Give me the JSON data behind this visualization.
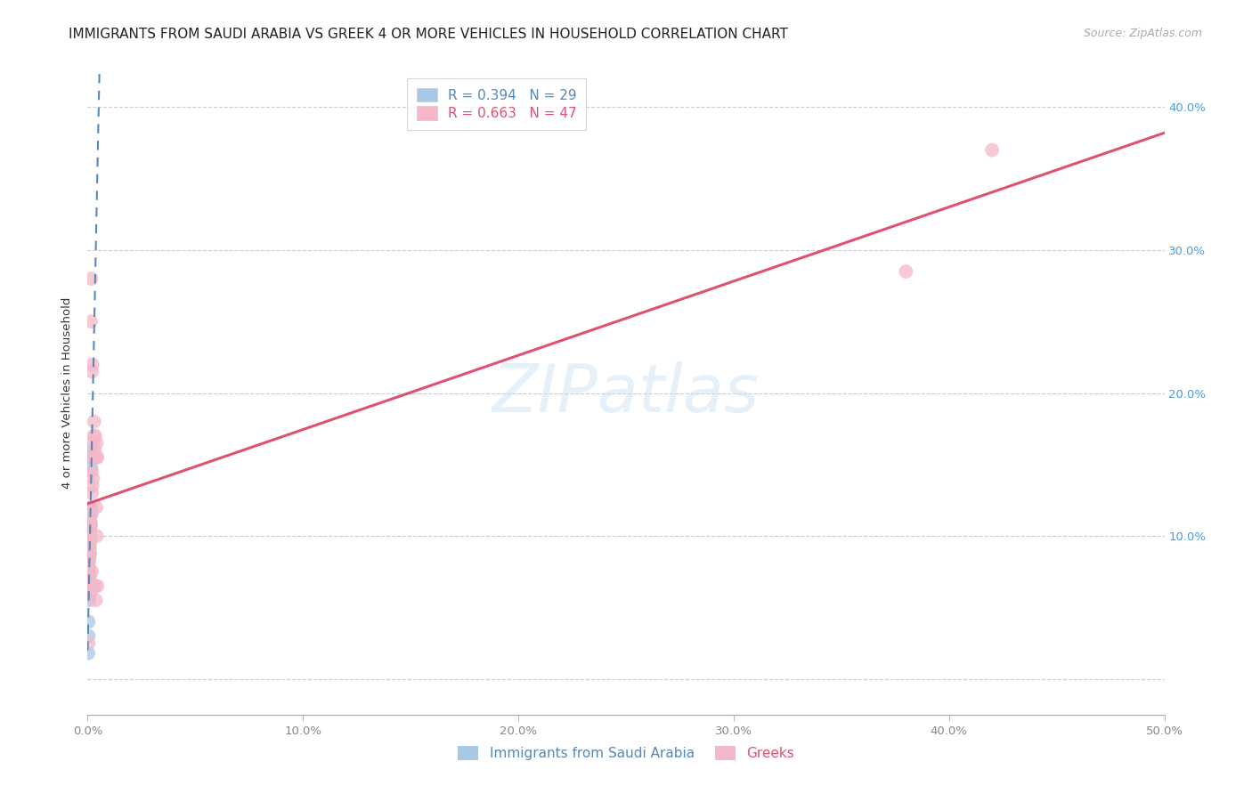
{
  "title": "IMMIGRANTS FROM SAUDI ARABIA VS GREEK 4 OR MORE VEHICLES IN HOUSEHOLD CORRELATION CHART",
  "source": "Source: ZipAtlas.com",
  "ylabel": "4 or more Vehicles in Household",
  "watermark": "ZIPatlas",
  "legend_entries": [
    {
      "label": "R = 0.394   N = 29",
      "color": "#a8c8e8"
    },
    {
      "label": "R = 0.663   N = 47",
      "color": "#f4b8c8"
    }
  ],
  "bottom_legend": [
    {
      "label": "Immigrants from Saudi Arabia",
      "color": "#a8c8e8"
    },
    {
      "label": "Greeks",
      "color": "#f4b8c8"
    }
  ],
  "saudi_color": "#a8c8e8",
  "greek_color": "#f4b8c8",
  "saudi_line_color": "#5588bb",
  "greek_line_color": "#e05070",
  "xlim": [
    0.0,
    0.5
  ],
  "ylim": [
    -0.025,
    0.425
  ],
  "ytick_values": [
    0.0,
    0.1,
    0.2,
    0.3,
    0.4
  ],
  "xtick_values": [
    0.0,
    0.1,
    0.2,
    0.3,
    0.4,
    0.5
  ],
  "saudi_points": [
    [
      0.0005,
      0.075
    ],
    [
      0.0005,
      0.082
    ],
    [
      0.0006,
      0.078
    ],
    [
      0.0007,
      0.09
    ],
    [
      0.0008,
      0.095
    ],
    [
      0.0008,
      0.088
    ],
    [
      0.0009,
      0.1
    ],
    [
      0.0009,
      0.085
    ],
    [
      0.001,
      0.105
    ],
    [
      0.001,
      0.092
    ],
    [
      0.0011,
      0.1
    ],
    [
      0.0011,
      0.088
    ],
    [
      0.0012,
      0.115
    ],
    [
      0.0013,
      0.108
    ],
    [
      0.0014,
      0.12
    ],
    [
      0.0015,
      0.155
    ],
    [
      0.0016,
      0.148
    ],
    [
      0.0018,
      0.16
    ],
    [
      0.0005,
      0.058
    ],
    [
      0.0006,
      0.065
    ],
    [
      0.0007,
      0.055
    ],
    [
      0.0008,
      0.068
    ],
    [
      0.0004,
      0.04
    ],
    [
      0.0004,
      0.03
    ],
    [
      0.0003,
      0.018
    ],
    [
      0.0009,
      0.072
    ],
    [
      0.0012,
      0.098
    ],
    [
      0.0014,
      0.108
    ],
    [
      0.0016,
      0.115
    ]
  ],
  "greek_points": [
    [
      0.0003,
      0.068
    ],
    [
      0.0004,
      0.075
    ],
    [
      0.0005,
      0.078
    ],
    [
      0.0005,
      0.065
    ],
    [
      0.0006,
      0.082
    ],
    [
      0.0007,
      0.088
    ],
    [
      0.0008,
      0.092
    ],
    [
      0.0009,
      0.088
    ],
    [
      0.001,
      0.095
    ],
    [
      0.0011,
      0.1
    ],
    [
      0.0012,
      0.105
    ],
    [
      0.0013,
      0.098
    ],
    [
      0.0014,
      0.11
    ],
    [
      0.0015,
      0.108
    ],
    [
      0.0016,
      0.115
    ],
    [
      0.0018,
      0.12
    ],
    [
      0.002,
      0.13
    ],
    [
      0.0022,
      0.135
    ],
    [
      0.0025,
      0.14
    ],
    [
      0.003,
      0.155
    ],
    [
      0.0033,
      0.16
    ],
    [
      0.0035,
      0.155
    ],
    [
      0.002,
      0.145
    ],
    [
      0.0022,
      0.155
    ],
    [
      0.0025,
      0.165
    ],
    [
      0.0015,
      0.25
    ],
    [
      0.0017,
      0.28
    ],
    [
      0.002,
      0.215
    ],
    [
      0.0022,
      0.22
    ],
    [
      0.0028,
      0.17
    ],
    [
      0.003,
      0.18
    ],
    [
      0.0035,
      0.17
    ],
    [
      0.004,
      0.155
    ],
    [
      0.0042,
      0.165
    ],
    [
      0.0045,
      0.155
    ],
    [
      0.003,
      0.155
    ],
    [
      0.002,
      0.075
    ],
    [
      0.004,
      0.12
    ],
    [
      0.0042,
      0.1
    ],
    [
      0.0012,
      0.06
    ],
    [
      0.0035,
      0.065
    ],
    [
      0.003,
      0.065
    ],
    [
      0.0038,
      0.055
    ],
    [
      0.0003,
      0.025
    ],
    [
      0.0045,
      0.065
    ],
    [
      0.38,
      0.285
    ],
    [
      0.42,
      0.37
    ]
  ],
  "background_color": "#ffffff",
  "grid_color": "#cccccc",
  "title_fontsize": 11,
  "axis_label_fontsize": 9.5,
  "tick_fontsize": 9.5,
  "legend_fontsize": 11,
  "ytick_color": "#5599dd",
  "xtick_color": "#888888"
}
